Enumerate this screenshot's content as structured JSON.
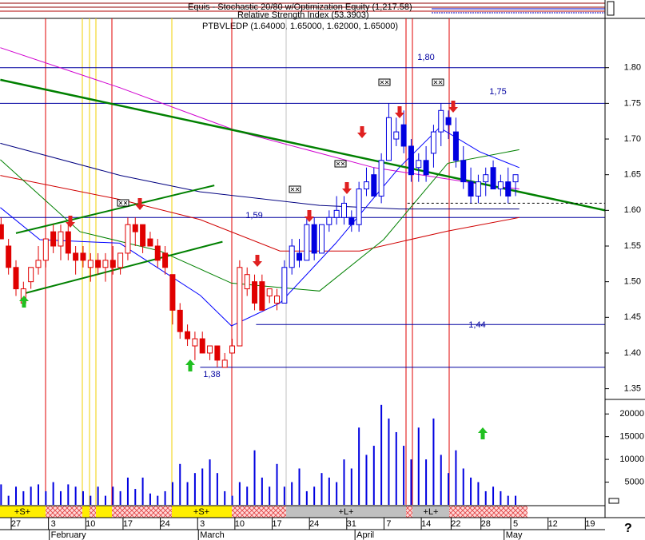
{
  "header": {
    "indicator_1": "Equis - Stochastic 20/80 w/Optimization Equity (1,217.58)",
    "indicator_2": "Relative Strength Index (53.3903)",
    "security": "PTBVLEDP (1.64000, 1.65000, 1.62000, 1.65000)",
    "help": "?"
  },
  "signals": [
    "+S+",
    "+S+",
    "+L+",
    "+L+"
  ],
  "chart_data": [
    {
      "type": "candlestick",
      "xlim": [
        -2.144,
        79.0
      ],
      "ylim": [
        1.335,
        1.868
      ],
      "yticks": [
        1.35,
        {
          "value": 1.4,
          "label": "1.40"
        },
        1.45,
        {
          "value": 1.5,
          "label": "1.50"
        },
        1.55,
        {
          "value": 1.6,
          "label": "1.60"
        },
        1.65,
        {
          "value": 1.7,
          "label": "1.70"
        },
        1.75,
        {
          "value": 1.8,
          "label": "1.80"
        }
      ],
      "xticks": [
        {
          "value": 0,
          "label": "27"
        },
        {
          "value": 5,
          "label": "3"
        },
        {
          "value": 10,
          "label": "10"
        },
        {
          "value": 15,
          "label": "17"
        },
        {
          "value": 20,
          "label": "24"
        },
        {
          "value": 25,
          "label": "3"
        },
        {
          "value": 30,
          "label": "10"
        },
        {
          "value": 35,
          "label": "17"
        },
        {
          "value": 40,
          "label": "24"
        },
        {
          "value": 45,
          "label": "31"
        },
        {
          "value": 50,
          "label": "7"
        },
        {
          "value": 55,
          "label": "14"
        },
        {
          "value": 59,
          "label": "22"
        },
        {
          "value": 63,
          "label": "28"
        },
        {
          "value": 67,
          "label": "5"
        },
        {
          "value": 72,
          "label": "12"
        },
        {
          "value": 77,
          "label": "19"
        }
      ],
      "month_labels": [
        {
          "value": 5,
          "label": "February"
        },
        {
          "value": 25,
          "label": "March"
        },
        {
          "value": 46,
          "label": "April"
        },
        {
          "value": 66,
          "label": "May"
        }
      ],
      "series": [
        {
          "color": "#e00000",
          "x": [
            -2,
            -1,
            0,
            1,
            2,
            3,
            4,
            5,
            6,
            7,
            8,
            9,
            10,
            11,
            12,
            13,
            14,
            15,
            16,
            17,
            18,
            19,
            20,
            21,
            22,
            23,
            24,
            25,
            26,
            27,
            28,
            29,
            30,
            31,
            32,
            33,
            34,
            35
          ],
          "open": [
            1.58,
            1.55,
            1.52,
            1.47,
            1.5,
            1.52,
            1.53,
            1.57,
            1.55,
            1.57,
            1.54,
            1.54,
            1.52,
            1.53,
            1.52,
            1.53,
            1.52,
            1.54,
            1.58,
            1.58,
            1.56,
            1.55,
            1.54,
            1.51,
            1.46,
            1.43,
            1.41,
            1.42,
            1.4,
            1.41,
            1.38,
            1.4,
            1.41,
            1.49,
            1.5,
            1.5,
            1.48,
            1.47
          ],
          "high": [
            1.59,
            1.56,
            1.53,
            1.5,
            1.52,
            1.55,
            1.56,
            1.58,
            1.58,
            1.58,
            1.55,
            1.55,
            1.54,
            1.54,
            1.54,
            1.55,
            1.54,
            1.59,
            1.59,
            1.58,
            1.57,
            1.56,
            1.55,
            1.51,
            1.47,
            1.44,
            1.43,
            1.43,
            1.41,
            1.41,
            1.4,
            1.42,
            1.53,
            1.52,
            1.51,
            1.51,
            1.49,
            1.49
          ],
          "low": [
            1.56,
            1.51,
            1.48,
            1.47,
            1.49,
            1.51,
            1.52,
            1.54,
            1.53,
            1.53,
            1.51,
            1.52,
            1.5,
            1.51,
            1.5,
            1.51,
            1.51,
            1.53,
            1.55,
            1.54,
            1.55,
            1.52,
            1.51,
            1.44,
            1.42,
            1.41,
            1.39,
            1.4,
            1.39,
            1.38,
            1.38,
            1.4,
            1.41,
            1.48,
            1.46,
            1.46,
            1.47,
            1.46
          ],
          "close": [
            1.56,
            1.52,
            1.49,
            1.49,
            1.52,
            1.53,
            1.56,
            1.55,
            1.57,
            1.54,
            1.53,
            1.53,
            1.53,
            1.52,
            1.53,
            1.52,
            1.54,
            1.58,
            1.57,
            1.55,
            1.55,
            1.53,
            1.52,
            1.46,
            1.43,
            1.42,
            1.42,
            1.4,
            1.41,
            1.39,
            1.39,
            1.41,
            1.52,
            1.51,
            1.47,
            1.46,
            1.49,
            1.48
          ]
        },
        {
          "color": "#0000e0",
          "x": [
            36,
            37,
            38,
            39,
            40,
            41,
            42,
            43,
            44,
            45,
            46,
            47,
            48,
            49,
            50,
            51,
            52,
            53,
            54,
            55,
            56,
            57,
            58,
            59,
            60,
            61,
            62,
            63,
            64,
            65,
            66,
            67
          ],
          "open": [
            1.47,
            1.52,
            1.54,
            1.53,
            1.58,
            1.54,
            1.58,
            1.59,
            1.59,
            1.59,
            1.58,
            1.63,
            1.65,
            1.62,
            1.67,
            1.7,
            1.72,
            1.69,
            1.66,
            1.67,
            1.68,
            1.71,
            1.73,
            1.71,
            1.67,
            1.64,
            1.62,
            1.64,
            1.66,
            1.63,
            1.64,
            1.64
          ],
          "high": [
            1.53,
            1.56,
            1.56,
            1.59,
            1.59,
            1.58,
            1.6,
            1.62,
            1.62,
            1.6,
            1.64,
            1.66,
            1.66,
            1.68,
            1.75,
            1.73,
            1.74,
            1.7,
            1.68,
            1.69,
            1.72,
            1.75,
            1.74,
            1.73,
            1.69,
            1.66,
            1.65,
            1.66,
            1.67,
            1.65,
            1.66,
            1.65
          ],
          "low": [
            1.47,
            1.51,
            1.52,
            1.53,
            1.53,
            1.54,
            1.57,
            1.58,
            1.58,
            1.57,
            1.57,
            1.62,
            1.62,
            1.61,
            1.67,
            1.69,
            1.68,
            1.64,
            1.64,
            1.64,
            1.66,
            1.69,
            1.7,
            1.66,
            1.63,
            1.61,
            1.61,
            1.62,
            1.63,
            1.62,
            1.61,
            1.62
          ],
          "close": [
            1.52,
            1.55,
            1.53,
            1.58,
            1.54,
            1.58,
            1.59,
            1.6,
            1.61,
            1.58,
            1.63,
            1.64,
            1.62,
            1.67,
            1.73,
            1.71,
            1.69,
            1.65,
            1.67,
            1.65,
            1.71,
            1.74,
            1.72,
            1.67,
            1.64,
            1.62,
            1.64,
            1.65,
            1.63,
            1.64,
            1.62,
            1.65
          ]
        }
      ],
      "overlays": [
        {
          "color": "#d000d0",
          "line_width": 1,
          "x": [
            -2.1,
            13.9,
            30,
            48,
            64,
            67.5
          ],
          "values": [
            1.828,
            1.772,
            1.71,
            1.66,
            1.634,
            1.63
          ]
        },
        {
          "color": "#000080",
          "line_width": 1,
          "x": [
            -2.1,
            14,
            24.7,
            40.7,
            51.4,
            67.5
          ],
          "values": [
            1.694,
            1.649,
            1.626,
            1.607,
            1.602,
            1.602
          ]
        },
        {
          "color": "#d00000",
          "line_width": 1,
          "x": [
            -2.1,
            14,
            24.7,
            35.4,
            46.1,
            57.9,
            67.5
          ],
          "values": [
            1.649,
            1.615,
            1.587,
            1.543,
            1.543,
            1.571,
            1.59
          ]
        },
        {
          "color": "#008000",
          "line_width": 1,
          "x": [
            -2.1,
            8.6,
            19.3,
            28.9,
            40.7,
            49.3,
            57.9,
            67.5
          ],
          "values": [
            1.671,
            1.57,
            1.543,
            1.498,
            1.487,
            1.559,
            1.666,
            1.685
          ]
        },
        {
          "color": "#0000ff",
          "line_width": 1,
          "x": [
            -2.1,
            3.2,
            13.9,
            24.7,
            28.9,
            35.4,
            42.9,
            51.4,
            56.8,
            62.2,
            67.5
          ],
          "values": [
            1.604,
            1.559,
            1.554,
            1.481,
            1.438,
            1.47,
            1.554,
            1.66,
            1.716,
            1.682,
            1.66
          ]
        },
        {
          "color": "#008000",
          "line_width": 2.5,
          "x": [
            -2.1,
            79
          ],
          "values": [
            1.783,
            1.6
          ]
        },
        {
          "color": "#008000",
          "line_width": 2,
          "x": [
            0,
            26.6
          ],
          "values": [
            1.568,
            1.635
          ]
        },
        {
          "color": "#008000",
          "line_width": 2,
          "x": [
            1.3,
            27.7
          ],
          "values": [
            1.484,
            1.556
          ]
        },
        {
          "color": "#000000",
          "line_width": 1,
          "dashed": true,
          "x": [
            52.5,
            79
          ],
          "values": [
            1.61,
            1.61
          ]
        }
      ],
      "levels": [
        {
          "value": 1.8,
          "label": "1,80"
        },
        {
          "value": 1.75,
          "label": "1,75"
        },
        {
          "value": 1.59,
          "label": "1,59"
        },
        {
          "value": 1.44,
          "label": "1,44",
          "x0": 32.2
        },
        {
          "value": 1.38,
          "label": "1,38",
          "x0": 24.7
        }
      ],
      "level_color": "#0000a0"
    },
    {
      "type": "bar",
      "color": "#0000e0",
      "x": [
        -2,
        -1,
        0,
        1,
        2,
        3,
        4,
        5,
        6,
        7,
        8,
        9,
        10,
        11,
        12,
        13,
        14,
        15,
        16,
        17,
        18,
        19,
        20,
        21,
        22,
        23,
        24,
        25,
        26,
        27,
        28,
        29,
        30,
        31,
        32,
        33,
        34,
        35,
        36,
        37,
        38,
        39,
        40,
        41,
        42,
        43,
        44,
        45,
        46,
        47,
        48,
        49,
        50,
        51,
        52,
        53,
        54,
        55,
        56,
        57,
        58,
        59,
        60,
        61,
        62,
        63,
        64,
        65,
        66,
        67
      ],
      "values": [
        4500,
        2000,
        4000,
        3000,
        4000,
        4500,
        3000,
        5000,
        3000,
        4500,
        4000,
        3000,
        2000,
        4000,
        2000,
        4000,
        3000,
        6000,
        3500,
        6000,
        2500,
        2000,
        3000,
        5000,
        9000,
        5000,
        7000,
        8000,
        10000,
        7000,
        3000,
        2000,
        5000,
        4000,
        12000,
        6000,
        4000,
        9000,
        4000,
        5000,
        8000,
        3000,
        4000,
        7000,
        6000,
        5000,
        10000,
        8000,
        17000,
        11000,
        13000,
        22000,
        19000,
        16000,
        13000,
        10000,
        17000,
        10000,
        19000,
        11000,
        7000,
        12000,
        8000,
        6000,
        5000,
        3000,
        4000,
        3000,
        2000,
        2000
      ],
      "ylim": [
        0,
        23200
      ],
      "yticks": [
        5000,
        10000,
        15000,
        20000
      ]
    }
  ]
}
